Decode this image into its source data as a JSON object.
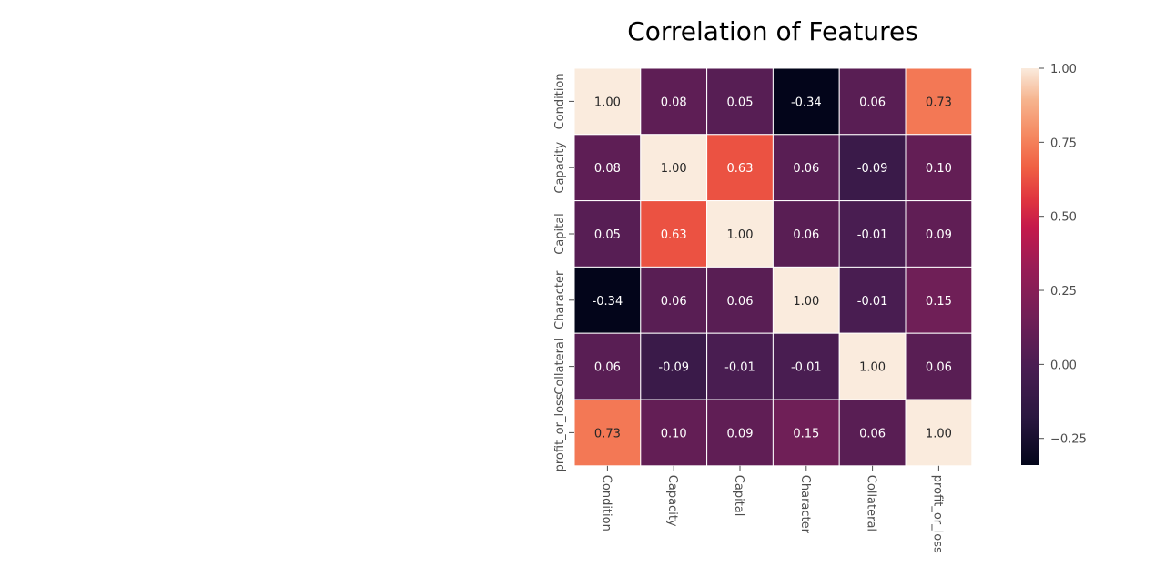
{
  "chart_data": {
    "type": "heatmap",
    "title": "Correlation of Features",
    "x_labels": [
      "Condition",
      "Capacity",
      "Capital",
      "Character",
      "Collateral",
      "profit_or_loss"
    ],
    "y_labels": [
      "Condition",
      "Capacity",
      "Capital",
      "Character",
      "Collateral",
      "profit_or_loss"
    ],
    "values": [
      [
        1.0,
        0.08,
        0.05,
        -0.34,
        0.06,
        0.73
      ],
      [
        0.08,
        1.0,
        0.63,
        0.06,
        -0.09,
        0.1
      ],
      [
        0.05,
        0.63,
        1.0,
        0.06,
        -0.01,
        0.09
      ],
      [
        -0.34,
        0.06,
        0.06,
        1.0,
        -0.01,
        0.15
      ],
      [
        0.06,
        -0.09,
        -0.01,
        -0.01,
        1.0,
        0.06
      ],
      [
        0.73,
        0.1,
        0.09,
        0.15,
        0.06,
        1.0
      ]
    ],
    "cell_labels": [
      [
        "1.00",
        "0.08",
        "0.05",
        "-0.34",
        "0.06",
        "0.73"
      ],
      [
        "0.08",
        "1.00",
        "0.63",
        "0.06",
        "-0.09",
        "0.10"
      ],
      [
        "0.05",
        "0.63",
        "1.00",
        "0.06",
        "-0.01",
        "0.09"
      ],
      [
        "-0.34",
        "0.06",
        "0.06",
        "1.00",
        "-0.01",
        "0.15"
      ],
      [
        "0.06",
        "-0.09",
        "-0.01",
        "-0.01",
        "1.00",
        "0.06"
      ],
      [
        "0.73",
        "0.10",
        "0.09",
        "0.15",
        "0.06",
        "1.00"
      ]
    ],
    "colormap": "rocket",
    "colorbar": {
      "range": [
        -0.34,
        1.0
      ],
      "ticks": [
        1.0,
        0.75,
        0.5,
        0.25,
        0.0,
        -0.25
      ],
      "tick_labels": [
        "1.00",
        "0.75",
        "0.50",
        "0.25",
        "0.00",
        "−0.25"
      ]
    },
    "grid": false,
    "cell_borders": "white"
  }
}
